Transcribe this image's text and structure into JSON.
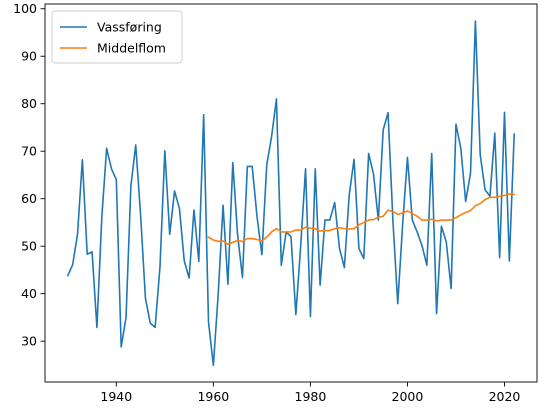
{
  "chart_data": {
    "type": "line",
    "title": "",
    "xlabel": "",
    "ylabel": "",
    "xlim": [
      1925.3,
      2026.7
    ],
    "ylim": [
      21.4,
      101.0
    ],
    "xticks": [
      1940,
      1960,
      1980,
      2000,
      2020
    ],
    "yticks": [
      30,
      40,
      50,
      60,
      70,
      80,
      90,
      100
    ],
    "grid": false,
    "legend_position": "upper-left",
    "series": [
      {
        "name": "Vassføring",
        "color": "#1f77b4",
        "x": [
          1930,
          1931,
          1932,
          1933,
          1934,
          1935,
          1936,
          1937,
          1938,
          1939,
          1940,
          1941,
          1942,
          1943,
          1944,
          1945,
          1946,
          1947,
          1948,
          1949,
          1950,
          1951,
          1952,
          1953,
          1954,
          1955,
          1956,
          1957,
          1958,
          1959,
          1960,
          1961,
          1962,
          1963,
          1964,
          1965,
          1966,
          1967,
          1968,
          1969,
          1970,
          1971,
          1972,
          1973,
          1974,
          1975,
          1976,
          1977,
          1978,
          1979,
          1980,
          1981,
          1982,
          1983,
          1984,
          1985,
          1986,
          1987,
          1988,
          1989,
          1990,
          1991,
          1992,
          1993,
          1994,
          1995,
          1996,
          1997,
          1998,
          1999,
          2000,
          2001,
          2002,
          2003,
          2004,
          2005,
          2006,
          2007,
          2008,
          2009,
          2010,
          2011,
          2012,
          2013,
          2014,
          2015,
          2016,
          2017,
          2018,
          2019,
          2020,
          2021,
          2022
        ],
        "y": [
          43.8,
          46.1,
          52.5,
          68.2,
          48.3,
          48.8,
          32.9,
          56.0,
          70.6,
          66.3,
          64.0,
          28.8,
          35.0,
          62.7,
          71.3,
          56.6,
          39.0,
          33.8,
          32.9,
          45.7,
          70.1,
          52.5,
          61.6,
          58.0,
          46.9,
          43.3,
          57.6,
          46.8,
          77.7,
          34.0,
          24.9,
          40.0,
          58.6,
          42.0,
          67.6,
          52.3,
          43.4,
          66.8,
          66.8,
          56.2,
          48.2,
          67.1,
          73.1,
          81.0,
          46.0,
          53.0,
          52.0,
          35.6,
          50.1,
          66.3,
          35.2,
          66.3,
          41.8,
          55.5,
          55.5,
          59.2,
          49.5,
          45.5,
          60.8,
          68.3,
          49.5,
          47.4,
          69.5,
          65.2,
          55.5,
          74.5,
          78.1,
          55.5,
          37.9,
          54.5,
          68.7,
          55.5,
          53.0,
          50.1,
          46.0,
          69.5,
          35.8,
          54.2,
          50.9,
          41.1,
          75.7,
          70.6,
          59.4,
          65.4,
          97.4,
          69.2,
          61.9,
          60.5,
          73.8,
          47.6,
          78.2,
          46.9,
          73.6
        ]
      },
      {
        "name": "Middelflom",
        "color": "#ff7f0e",
        "x": [
          1959,
          1960,
          1961,
          1962,
          1963,
          1964,
          1965,
          1966,
          1967,
          1968,
          1969,
          1970,
          1971,
          1972,
          1973,
          1974,
          1975,
          1976,
          1977,
          1978,
          1979,
          1980,
          1981,
          1982,
          1983,
          1984,
          1985,
          1986,
          1987,
          1988,
          1989,
          1990,
          1991,
          1992,
          1993,
          1994,
          1995,
          1996,
          1997,
          1998,
          1999,
          2000,
          2001,
          2002,
          2003,
          2004,
          2005,
          2006,
          2007,
          2008,
          2009,
          2010,
          2011,
          2012,
          2013,
          2014,
          2015,
          2016,
          2017,
          2018,
          2019,
          2020,
          2021,
          2022
        ],
        "y": [
          51.9,
          51.3,
          51.0,
          51.1,
          50.4,
          50.8,
          51.2,
          51.0,
          51.6,
          51.6,
          51.4,
          51.1,
          51.9,
          53.0,
          53.7,
          53.0,
          53.0,
          53.0,
          53.4,
          53.4,
          54.0,
          53.8,
          53.7,
          53.2,
          53.3,
          53.3,
          53.7,
          53.9,
          53.7,
          53.6,
          53.7,
          54.5,
          55.0,
          55.5,
          55.6,
          56.1,
          56.3,
          57.6,
          57.3,
          56.7,
          57.0,
          57.4,
          56.9,
          56.3,
          55.5,
          55.5,
          55.7,
          55.3,
          55.5,
          55.5,
          55.5,
          56.0,
          56.6,
          57.1,
          57.5,
          58.5,
          59.0,
          59.8,
          60.3,
          60.3,
          60.5,
          60.7,
          61.0,
          60.9
        ]
      }
    ]
  }
}
